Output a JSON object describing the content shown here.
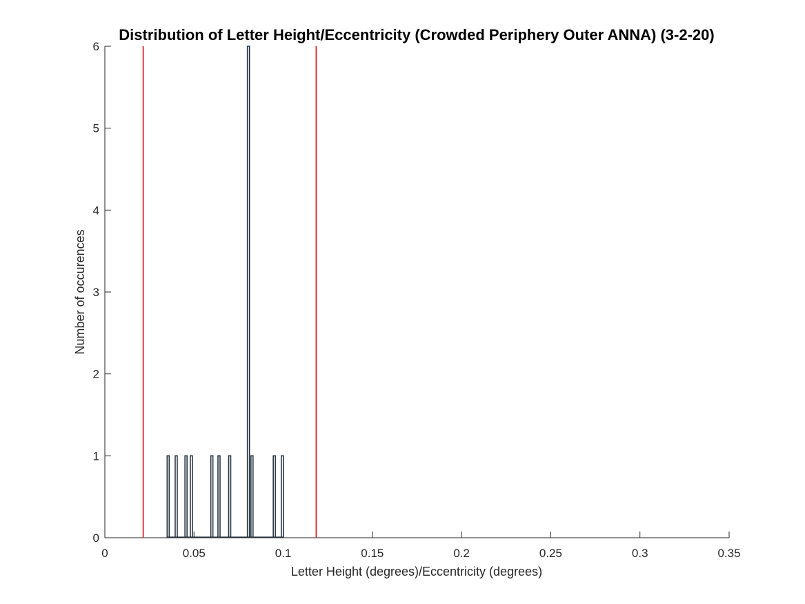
{
  "chart_data": {
    "type": "histogram",
    "title": "Distribution of Letter Height/Eccentricity (Crowded Periphery Outer ANNA) (3-2-20)",
    "xlabel": "Letter Height (degrees)/Eccentricity (degrees)",
    "ylabel": "Number of occurences",
    "xlim": [
      0,
      0.35
    ],
    "ylim": [
      0,
      6
    ],
    "xticks": [
      0,
      0.05,
      0.1,
      0.15,
      0.2,
      0.25,
      0.3,
      0.35
    ],
    "xtick_labels": [
      "0",
      "0.05",
      "0.1",
      "0.15",
      "0.2",
      "0.25",
      "0.3",
      "0.35"
    ],
    "yticks": [
      0,
      1,
      2,
      3,
      4,
      5,
      6
    ],
    "ytick_labels": [
      "0",
      "1",
      "2",
      "3",
      "4",
      "5",
      "6"
    ],
    "grid": false,
    "bar_color": "#263440",
    "bins": [
      {
        "x": 0.0355,
        "count": 1
      },
      {
        "x": 0.04,
        "count": 1
      },
      {
        "x": 0.0455,
        "count": 1
      },
      {
        "x": 0.0485,
        "count": 1
      },
      {
        "x": 0.06,
        "count": 1
      },
      {
        "x": 0.064,
        "count": 1
      },
      {
        "x": 0.07,
        "count": 1
      },
      {
        "x": 0.0805,
        "count": 6
      },
      {
        "x": 0.0825,
        "count": 1
      },
      {
        "x": 0.095,
        "count": 1
      },
      {
        "x": 0.0995,
        "count": 1
      }
    ],
    "reference_lines": [
      {
        "x": 0.0215,
        "color": "#d62728"
      },
      {
        "x": 0.1185,
        "color": "#d62728"
      }
    ]
  }
}
